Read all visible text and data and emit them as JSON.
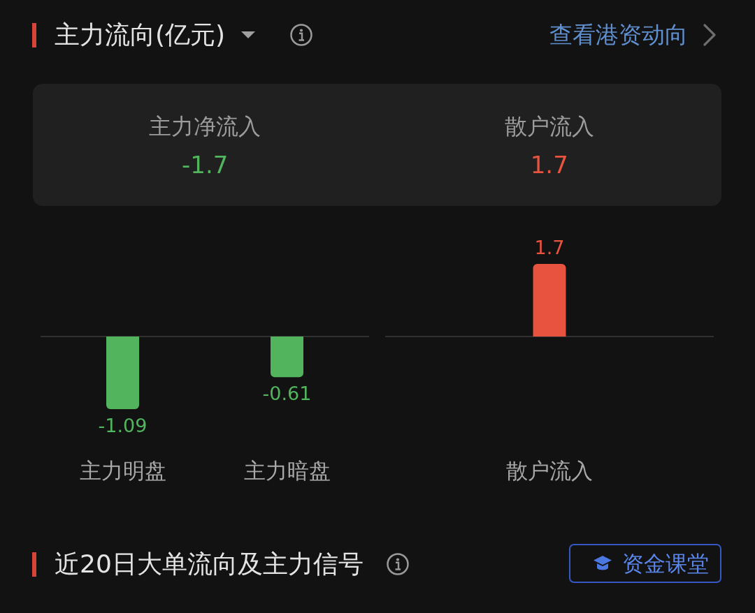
{
  "chart_data": [
    {
      "type": "other",
      "title": "主力流向(亿元)",
      "annotations": [
        "查看港资动向"
      ],
      "categories": [
        "主力净流入",
        "散户流入"
      ],
      "values": [
        -1.7,
        1.7
      ],
      "data_labels": true
    },
    {
      "type": "bar",
      "categories": [
        "主力明盘",
        "主力暗盘"
      ],
      "values": [
        -1.09,
        -0.61
      ],
      "color": "#52b55e",
      "data_labels": true,
      "tick_labels": "x"
    },
    {
      "type": "bar",
      "categories": [
        "散户流入"
      ],
      "values": [
        1.7
      ],
      "color": "#e8533f",
      "data_labels": true,
      "tick_labels": "x"
    },
    {
      "type": "other",
      "title": "近20日大单流向及主力信号",
      "annotations": [
        "资金课堂"
      ]
    }
  ]
}
